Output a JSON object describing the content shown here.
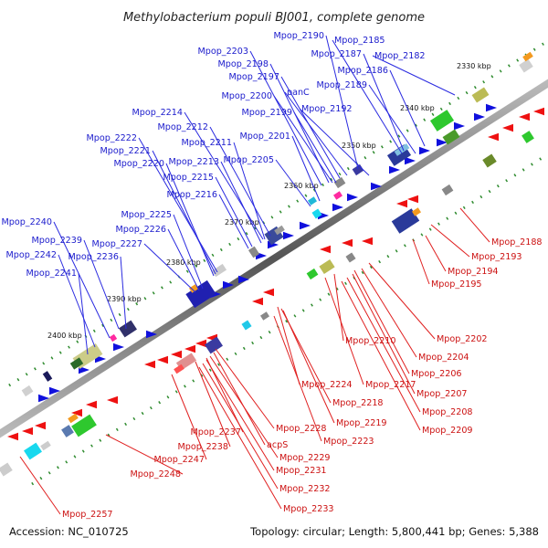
{
  "title": "Methylobacterium populi BJ001, complete genome",
  "footer": {
    "accession": "Accession: NC_010725",
    "topology": "Topology: circular; Length: 5,800,441 bp; Genes: 5,388"
  },
  "ticks": [
    "2330 kbp",
    "2340 kbp",
    "2350 kbp",
    "2360 kbp",
    "2370 kbp",
    "2380 kbp",
    "2390 kbp",
    "2400 kbp"
  ],
  "forward_genes": [
    "Mpop_2190",
    "Mpop_2185",
    "Mpop_2203",
    "Mpop_2187",
    "Mpop_2182",
    "Mpop_2198",
    "Mpop_2186",
    "Mpop_2197",
    "Mpop_2189",
    "panC",
    "Mpop_2200",
    "Mpop_2199",
    "Mpop_2192",
    "Mpop_2214",
    "Mpop_2212",
    "Mpop_2201",
    "Mpop_2222",
    "Mpop_2211",
    "Mpop_2221",
    "Mpop_2213",
    "Mpop_2205",
    "Mpop_2220",
    "Mpop_2215",
    "Mpop_2216",
    "Mpop_2225",
    "Mpop_2240",
    "Mpop_2226",
    "Mpop_2239",
    "Mpop_2227",
    "Mpop_2242",
    "Mpop_2236",
    "Mpop_2241"
  ],
  "reverse_genes": [
    "Mpop_2188",
    "Mpop_2193",
    "Mpop_2194",
    "Mpop_2195",
    "Mpop_2202",
    "Mpop_2210",
    "Mpop_2204",
    "Mpop_2206",
    "Mpop_2224",
    "Mpop_2217",
    "Mpop_2207",
    "Mpop_2218",
    "Mpop_2208",
    "Mpop_2219",
    "Mpop_2209",
    "Mpop_2228",
    "Mpop_2223",
    "Mpop_2237",
    "acpS",
    "Mpop_2238",
    "Mpop_2229",
    "Mpop_2247",
    "Mpop_2231",
    "Mpop_2248",
    "Mpop_2232",
    "Mpop_2233",
    "Mpop_2257"
  ]
}
